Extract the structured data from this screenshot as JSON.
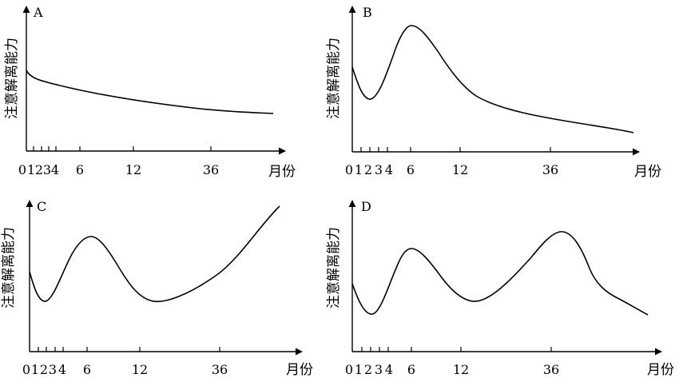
{
  "chart_data": [
    {
      "type": "line",
      "title": "A",
      "ylabel": "注意解离能力",
      "xlabel": "月份",
      "x_tick_labels": [
        "0",
        "1",
        "2",
        "3",
        "4",
        "6",
        "12",
        "36"
      ],
      "series": [
        {
          "x": [
            0,
            0.5,
            1,
            2,
            3,
            4,
            6,
            9,
            12,
            18,
            24,
            36,
            48
          ],
          "values": [
            0.62,
            0.57,
            0.555,
            0.54,
            0.525,
            0.51,
            0.48,
            0.43,
            0.39,
            0.345,
            0.315,
            0.285,
            0.27
          ]
        }
      ]
    },
    {
      "type": "line",
      "title": "B",
      "ylabel": "注意解离能力",
      "xlabel": "月份",
      "x_tick_labels": [
        "0",
        "1",
        "2",
        "3",
        "4",
        "6",
        "12",
        "36"
      ],
      "series": [
        {
          "x": [
            0,
            1,
            2,
            3,
            4,
            5,
            6,
            7,
            8,
            10,
            12,
            14,
            18,
            24,
            36,
            48
          ],
          "values": [
            0.66,
            0.5,
            0.42,
            0.48,
            0.68,
            0.88,
            0.99,
            0.96,
            0.84,
            0.6,
            0.47,
            0.42,
            0.38,
            0.33,
            0.22,
            0.15
          ]
        }
      ]
    },
    {
      "type": "line",
      "title": "C",
      "ylabel": "注意解离能力",
      "xlabel": "月份",
      "x_tick_labels": [
        "0",
        "1",
        "2",
        "3",
        "4",
        "6",
        "12",
        "36"
      ],
      "series": [
        {
          "x": [
            0,
            1,
            2,
            3,
            4,
            5,
            6,
            7,
            8,
            10,
            12,
            14,
            18,
            24,
            36,
            48
          ],
          "values": [
            0.56,
            0.42,
            0.4,
            0.47,
            0.6,
            0.72,
            0.78,
            0.74,
            0.64,
            0.46,
            0.4,
            0.41,
            0.48,
            0.58,
            0.78,
            0.98
          ]
        }
      ]
    },
    {
      "type": "line",
      "title": "D",
      "ylabel": "注意解离能力",
      "xlabel": "月份",
      "x_tick_labels": [
        "0",
        "1",
        "2",
        "3",
        "4",
        "6",
        "12",
        "36"
      ],
      "series": [
        {
          "x": [
            0,
            1,
            2,
            3,
            4,
            5,
            6,
            7,
            8,
            10,
            12,
            14,
            18,
            24,
            30,
            36,
            40,
            44,
            48
          ],
          "values": [
            0.52,
            0.4,
            0.36,
            0.42,
            0.55,
            0.7,
            0.77,
            0.74,
            0.64,
            0.49,
            0.42,
            0.44,
            0.54,
            0.7,
            0.82,
            0.86,
            0.78,
            0.6,
            0.44
          ]
        }
      ]
    }
  ]
}
